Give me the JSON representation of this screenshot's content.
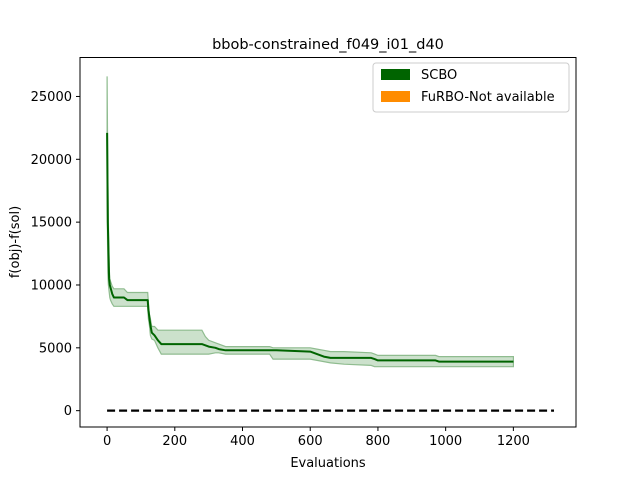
{
  "chart_data": {
    "type": "line",
    "title": "bbob-constrained_f049_i01_d40",
    "xlabel": "Evaluations",
    "ylabel": "f(obj)-f(sol)",
    "xlim": [
      -80,
      1385
    ],
    "ylim": [
      -1300,
      28100
    ],
    "xticks": [
      0,
      200,
      400,
      600,
      800,
      1000,
      1200
    ],
    "yticks": [
      0,
      5000,
      10000,
      15000,
      20000,
      25000
    ],
    "xtick_labels": [
      "0",
      "200",
      "400",
      "600",
      "800",
      "1000",
      "1200"
    ],
    "ytick_labels": [
      "0",
      "5000",
      "10000",
      "15000",
      "20000",
      "25000"
    ],
    "grid": false,
    "legend_position": "top-right",
    "legend": [
      {
        "label": "SCBO",
        "color": "#006400"
      },
      {
        "label": "FuRBO-Not available",
        "color": "#ff8c00"
      }
    ],
    "series": [
      {
        "name": "SCBO",
        "color": "#006400",
        "band_color": "#8fbc8f",
        "x": [
          0,
          2,
          4,
          6,
          8,
          10,
          15,
          20,
          30,
          50,
          60,
          100,
          120,
          122,
          125,
          128,
          132,
          140,
          150,
          160,
          200,
          280,
          290,
          300,
          320,
          330,
          350,
          480,
          490,
          500,
          600,
          620,
          640,
          660,
          700,
          780,
          790,
          800,
          900,
          970,
          980,
          1100,
          1200
        ],
        "y": [
          22100,
          15000,
          13000,
          10500,
          10000,
          9800,
          9300,
          9000,
          9000,
          9000,
          8800,
          8800,
          8800,
          8000,
          7400,
          6800,
          6200,
          6000,
          5600,
          5300,
          5300,
          5300,
          5200,
          5100,
          5000,
          4900,
          4800,
          4800,
          4800,
          4800,
          4700,
          4500,
          4300,
          4200,
          4200,
          4200,
          4100,
          4000,
          4000,
          4000,
          3900,
          3900,
          3900
        ],
        "upper": [
          26600,
          19000,
          15000,
          11500,
          10500,
          10300,
          9900,
          9700,
          9700,
          9700,
          9400,
          9400,
          9400,
          8600,
          7700,
          7300,
          6700,
          6700,
          6400,
          6400,
          6400,
          6400,
          5900,
          5600,
          5400,
          5300,
          5100,
          5100,
          5000,
          5000,
          5000,
          4900,
          4800,
          4700,
          4700,
          4600,
          4500,
          4400,
          4400,
          4400,
          4300,
          4300,
          4300
        ],
        "lower": [
          17500,
          11000,
          10000,
          9500,
          9000,
          8800,
          8500,
          8300,
          8300,
          8300,
          8300,
          8300,
          8300,
          7300,
          6800,
          6000,
          5700,
          5600,
          5000,
          4500,
          4500,
          4500,
          4500,
          4500,
          4600,
          4600,
          4500,
          4500,
          4100,
          4100,
          4100,
          4000,
          3900,
          3800,
          3700,
          3600,
          3500,
          3500,
          3500,
          3500,
          3500,
          3500,
          3500
        ]
      }
    ],
    "reference_line": {
      "y": 0,
      "x": [
        0,
        1320
      ],
      "style": "dashed",
      "color": "#000000"
    }
  }
}
